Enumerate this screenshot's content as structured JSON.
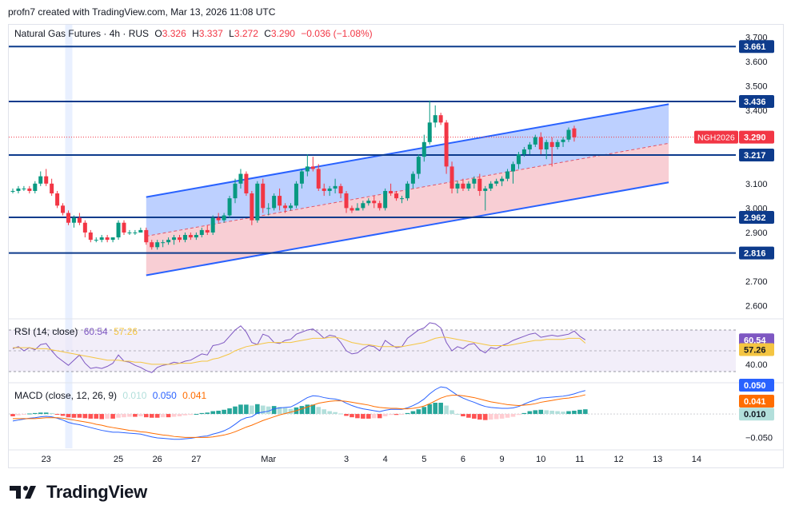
{
  "header": {
    "created_by": "profn7 created with TradingView.com, Mar 13, 2026 11:08 UTC"
  },
  "legend": {
    "symbol": "Natural Gas Futures · 4h · RUS",
    "o_label": "O",
    "o_value": "3.326",
    "h_label": "H",
    "h_value": "3.337",
    "l_label": "L",
    "l_value": "3.272",
    "c_label": "C",
    "c_value": "3.290",
    "change": "−0.036 (−1.08%)"
  },
  "rsi_legend": {
    "label": "RSI (14, close)",
    "value": "60.54",
    "ma_value": "57.26"
  },
  "macd_legend": {
    "label": "MACD (close, 12, 26, 9)",
    "hist": "0.010",
    "macd": "0.050",
    "signal": "0.041"
  },
  "colors": {
    "up": "#089981",
    "down": "#f23645",
    "level": "#0d3b8c",
    "channel": "#2962ff",
    "channel_fill_top": "#b2c8ff",
    "channel_fill_bottom": "#f7c9cf",
    "rsi": "#7e57c2",
    "rsi_ma": "#f4c542",
    "macd": "#2962ff",
    "signal": "#ff6d00",
    "hist_up_strong": "#26a69a",
    "hist_up_weak": "#b2dfdb",
    "hist_down_strong": "#ff5252",
    "hist_down_weak": "#ffcdd2"
  },
  "brand": {
    "name": "TradingView"
  },
  "chart_data": {
    "type": "candlestick",
    "title": "Natural Gas Futures · 4h · RUS",
    "ylim": [
      2.55,
      3.75
    ],
    "y_ticks": [
      "3.700",
      "3.600",
      "3.500",
      "3.400",
      "3.100",
      "3.000",
      "2.900",
      "2.700",
      "2.600"
    ],
    "x_labels": [
      {
        "i": 6,
        "label": "23"
      },
      {
        "i": 19,
        "label": "25"
      },
      {
        "i": 26,
        "label": "26"
      },
      {
        "i": 33,
        "label": "27"
      },
      {
        "i": 46,
        "label": "Mar"
      },
      {
        "i": 60,
        "label": "3"
      },
      {
        "i": 67,
        "label": "4"
      },
      {
        "i": 74,
        "label": "5"
      },
      {
        "i": 81,
        "label": "6"
      },
      {
        "i": 88,
        "label": "9"
      },
      {
        "i": 95,
        "label": "10"
      },
      {
        "i": 102,
        "label": "11"
      },
      {
        "i": 109,
        "label": "12"
      },
      {
        "i": 116,
        "label": "13"
      },
      {
        "i": 123,
        "label": "14"
      }
    ],
    "levels": [
      {
        "value": 3.661,
        "label": "3.661"
      },
      {
        "value": 3.436,
        "label": "3.436"
      },
      {
        "value": 3.217,
        "label": "3.217"
      },
      {
        "value": 2.962,
        "label": "2.962"
      },
      {
        "value": 2.816,
        "label": "2.816"
      }
    ],
    "current_price": {
      "value": 3.29,
      "label": "3.290",
      "symbol": "NGH2026"
    },
    "channel": {
      "start_i": 24,
      "end_i": 118,
      "upper": [
        3.045,
        3.425
      ],
      "middle": [
        2.885,
        3.265
      ],
      "lower": [
        2.725,
        3.105
      ]
    },
    "highlight_i": 10,
    "candles": [
      [
        3.07,
        3.08,
        3.06,
        3.07
      ],
      [
        3.07,
        3.09,
        3.06,
        3.08
      ],
      [
        3.08,
        3.09,
        3.07,
        3.08
      ],
      [
        3.08,
        3.09,
        3.06,
        3.07
      ],
      [
        3.07,
        3.11,
        3.06,
        3.1
      ],
      [
        3.1,
        3.15,
        3.09,
        3.13
      ],
      [
        3.13,
        3.16,
        3.09,
        3.1
      ],
      [
        3.1,
        3.12,
        3.05,
        3.06
      ],
      [
        3.06,
        3.07,
        3.0,
        3.01
      ],
      [
        3.01,
        3.02,
        2.97,
        2.98
      ],
      [
        2.98,
        2.99,
        2.93,
        2.94
      ],
      [
        2.94,
        2.97,
        2.92,
        2.96
      ],
      [
        2.96,
        2.98,
        2.93,
        2.94
      ],
      [
        2.94,
        2.95,
        2.88,
        2.9
      ],
      [
        2.9,
        2.91,
        2.86,
        2.87
      ],
      [
        2.87,
        2.88,
        2.86,
        2.87
      ],
      [
        2.87,
        2.89,
        2.86,
        2.88
      ],
      [
        2.88,
        2.89,
        2.86,
        2.87
      ],
      [
        2.87,
        2.88,
        2.86,
        2.88
      ],
      [
        2.88,
        2.95,
        2.87,
        2.94
      ],
      [
        2.94,
        2.95,
        2.89,
        2.9
      ],
      [
        2.9,
        2.91,
        2.89,
        2.9
      ],
      [
        2.9,
        2.91,
        2.89,
        2.9
      ],
      [
        2.9,
        2.92,
        2.9,
        2.91
      ],
      [
        2.91,
        2.92,
        2.85,
        2.86
      ],
      [
        2.86,
        2.87,
        2.83,
        2.84
      ],
      [
        2.84,
        2.87,
        2.83,
        2.86
      ],
      [
        2.86,
        2.87,
        2.84,
        2.86
      ],
      [
        2.86,
        2.88,
        2.85,
        2.87
      ],
      [
        2.87,
        2.89,
        2.85,
        2.88
      ],
      [
        2.88,
        2.89,
        2.86,
        2.87
      ],
      [
        2.87,
        2.9,
        2.86,
        2.89
      ],
      [
        2.89,
        2.9,
        2.87,
        2.88
      ],
      [
        2.88,
        2.9,
        2.87,
        2.89
      ],
      [
        2.89,
        2.92,
        2.88,
        2.91
      ],
      [
        2.91,
        2.93,
        2.89,
        2.9
      ],
      [
        2.9,
        2.97,
        2.89,
        2.96
      ],
      [
        2.96,
        2.98,
        2.94,
        2.95
      ],
      [
        2.95,
        2.98,
        2.94,
        2.97
      ],
      [
        2.97,
        3.05,
        2.96,
        3.04
      ],
      [
        3.04,
        3.12,
        3.02,
        3.1
      ],
      [
        3.1,
        3.16,
        3.08,
        3.14
      ],
      [
        3.14,
        3.15,
        3.05,
        3.06
      ],
      [
        3.06,
        3.07,
        2.93,
        2.95
      ],
      [
        2.95,
        3.11,
        2.94,
        3.1
      ],
      [
        3.1,
        3.12,
        2.98,
        3.0
      ],
      [
        3.0,
        3.02,
        2.97,
        3.0
      ],
      [
        3.0,
        3.06,
        2.99,
        3.05
      ],
      [
        3.05,
        3.08,
        2.99,
        3.01
      ],
      [
        3.01,
        3.02,
        2.98,
        3.0
      ],
      [
        3.0,
        3.02,
        2.99,
        3.01
      ],
      [
        3.01,
        3.11,
        3.0,
        3.1
      ],
      [
        3.1,
        3.16,
        3.08,
        3.15
      ],
      [
        3.15,
        3.22,
        3.13,
        3.17
      ],
      [
        3.17,
        3.21,
        3.15,
        3.16
      ],
      [
        3.16,
        3.18,
        3.07,
        3.08
      ],
      [
        3.08,
        3.1,
        3.05,
        3.07
      ],
      [
        3.07,
        3.09,
        3.05,
        3.08
      ],
      [
        3.08,
        3.12,
        3.06,
        3.09
      ],
      [
        3.09,
        3.1,
        3.04,
        3.06
      ],
      [
        3.06,
        3.07,
        2.98,
        3.0
      ],
      [
        3.0,
        3.01,
        2.98,
        2.99
      ],
      [
        2.99,
        3.02,
        2.99,
        3.0
      ],
      [
        3.0,
        3.03,
        2.99,
        3.02
      ],
      [
        3.02,
        3.04,
        3.01,
        3.03
      ],
      [
        3.03,
        3.05,
        3.0,
        3.02
      ],
      [
        3.02,
        3.03,
        2.99,
        3.0
      ],
      [
        3.0,
        3.08,
        2.99,
        3.07
      ],
      [
        3.07,
        3.1,
        3.05,
        3.06
      ],
      [
        3.06,
        3.07,
        3.03,
        3.04
      ],
      [
        3.04,
        3.05,
        3.02,
        3.04
      ],
      [
        3.04,
        3.11,
        3.03,
        3.1
      ],
      [
        3.1,
        3.15,
        3.08,
        3.14
      ],
      [
        3.14,
        3.22,
        3.12,
        3.21
      ],
      [
        3.21,
        3.3,
        3.19,
        3.27
      ],
      [
        3.27,
        3.44,
        3.26,
        3.35
      ],
      [
        3.35,
        3.42,
        3.33,
        3.38
      ],
      [
        3.38,
        3.39,
        3.34,
        3.35
      ],
      [
        3.35,
        3.36,
        3.14,
        3.17
      ],
      [
        3.17,
        3.19,
        3.06,
        3.08
      ],
      [
        3.08,
        3.11,
        3.06,
        3.1
      ],
      [
        3.1,
        3.12,
        3.07,
        3.08
      ],
      [
        3.08,
        3.11,
        3.07,
        3.1
      ],
      [
        3.1,
        3.13,
        3.08,
        3.12
      ],
      [
        3.12,
        3.14,
        3.05,
        3.07
      ],
      [
        3.07,
        3.09,
        2.99,
        3.08
      ],
      [
        3.08,
        3.11,
        3.07,
        3.1
      ],
      [
        3.1,
        3.12,
        3.09,
        3.11
      ],
      [
        3.11,
        3.13,
        3.09,
        3.12
      ],
      [
        3.12,
        3.16,
        3.11,
        3.15
      ],
      [
        3.15,
        3.19,
        3.1,
        3.18
      ],
      [
        3.18,
        3.23,
        3.16,
        3.22
      ],
      [
        3.22,
        3.25,
        3.21,
        3.24
      ],
      [
        3.24,
        3.27,
        3.22,
        3.26
      ],
      [
        3.26,
        3.3,
        3.25,
        3.29
      ],
      [
        3.29,
        3.31,
        3.22,
        3.24
      ],
      [
        3.24,
        3.28,
        3.2,
        3.27
      ],
      [
        3.27,
        3.29,
        3.17,
        3.25
      ],
      [
        3.25,
        3.28,
        3.24,
        3.27
      ],
      [
        3.27,
        3.29,
        3.25,
        3.28
      ],
      [
        3.28,
        3.33,
        3.27,
        3.32
      ],
      [
        3.326,
        3.337,
        3.272,
        3.29
      ]
    ],
    "rsi": {
      "ylim": [
        20,
        80
      ],
      "ticks": [
        "60.54",
        "57.26",
        "40.00"
      ],
      "values": [
        52,
        54,
        50,
        53,
        51,
        56,
        57,
        50,
        44,
        40,
        36,
        41,
        46,
        38,
        33,
        34,
        33,
        35,
        38,
        46,
        40,
        39,
        36,
        34,
        31,
        29,
        34,
        36,
        37,
        39,
        38,
        40,
        41,
        44,
        47,
        46,
        55,
        56,
        58,
        64,
        70,
        74,
        68,
        58,
        56,
        66,
        64,
        58,
        57,
        60,
        61,
        66,
        68,
        70,
        71,
        67,
        62,
        65,
        64,
        58,
        50,
        47,
        48,
        52,
        55,
        54,
        50,
        60,
        56,
        53,
        54,
        62,
        66,
        70,
        72,
        77,
        76,
        72,
        58,
        50,
        54,
        52,
        56,
        57,
        51,
        48,
        53,
        52,
        55,
        57,
        60,
        62,
        64,
        66,
        67,
        63,
        64,
        65,
        64,
        65,
        66,
        69,
        64,
        60.5
      ],
      "ma": [
        53,
        53,
        53,
        53,
        52,
        52,
        52,
        51,
        50,
        49,
        48,
        47,
        46,
        45,
        44,
        43,
        42,
        41,
        41,
        41,
        40,
        40,
        39,
        39,
        38,
        37,
        37,
        37,
        37,
        37,
        38,
        38,
        38,
        39,
        40,
        40,
        42,
        43,
        45,
        47,
        50,
        52,
        54,
        55,
        56,
        57,
        58,
        58,
        58,
        58,
        58,
        59,
        60,
        61,
        62,
        62,
        62,
        63,
        63,
        62,
        60,
        58,
        57,
        56,
        56,
        55,
        54,
        54,
        54,
        54,
        54,
        55,
        56,
        57,
        58,
        60,
        62,
        63,
        63,
        62,
        61,
        60,
        59,
        58,
        57,
        56,
        55,
        55,
        55,
        55,
        56,
        57,
        58,
        59,
        60,
        60,
        61,
        61,
        61,
        61,
        62,
        62,
        62,
        57.3
      ]
    },
    "macd": {
      "ylim": [
        -0.075,
        0.065
      ],
      "ticks": [
        "0.050",
        "0.041",
        "0.010",
        "−0.050"
      ],
      "macd": [
        -0.015,
        -0.013,
        -0.011,
        -0.009,
        -0.008,
        -0.006,
        -0.005,
        -0.006,
        -0.009,
        -0.013,
        -0.018,
        -0.021,
        -0.023,
        -0.026,
        -0.029,
        -0.032,
        -0.035,
        -0.037,
        -0.039,
        -0.039,
        -0.04,
        -0.041,
        -0.042,
        -0.043,
        -0.046,
        -0.049,
        -0.051,
        -0.052,
        -0.053,
        -0.054,
        -0.054,
        -0.053,
        -0.052,
        -0.05,
        -0.048,
        -0.047,
        -0.043,
        -0.04,
        -0.036,
        -0.03,
        -0.022,
        -0.013,
        -0.008,
        -0.006,
        0.002,
        0.004,
        0.006,
        0.011,
        0.013,
        0.014,
        0.015,
        0.021,
        0.028,
        0.035,
        0.039,
        0.038,
        0.035,
        0.033,
        0.032,
        0.029,
        0.023,
        0.018,
        0.014,
        0.011,
        0.009,
        0.007,
        0.005,
        0.008,
        0.01,
        0.01,
        0.01,
        0.013,
        0.018,
        0.024,
        0.032,
        0.043,
        0.052,
        0.058,
        0.056,
        0.048,
        0.04,
        0.034,
        0.029,
        0.025,
        0.02,
        0.016,
        0.014,
        0.013,
        0.012,
        0.012,
        0.013,
        0.016,
        0.021,
        0.026,
        0.03,
        0.034,
        0.035,
        0.036,
        0.037,
        0.038,
        0.04,
        0.043,
        0.047,
        0.05
      ],
      "signal": [
        -0.01,
        -0.01,
        -0.01,
        -0.01,
        -0.01,
        -0.009,
        -0.008,
        -0.008,
        -0.008,
        -0.009,
        -0.011,
        -0.013,
        -0.015,
        -0.017,
        -0.019,
        -0.022,
        -0.024,
        -0.027,
        -0.029,
        -0.031,
        -0.033,
        -0.035,
        -0.036,
        -0.038,
        -0.039,
        -0.041,
        -0.043,
        -0.045,
        -0.046,
        -0.048,
        -0.049,
        -0.05,
        -0.05,
        -0.05,
        -0.05,
        -0.05,
        -0.049,
        -0.047,
        -0.045,
        -0.042,
        -0.038,
        -0.033,
        -0.028,
        -0.024,
        -0.019,
        -0.014,
        -0.01,
        -0.006,
        -0.002,
        0.001,
        0.004,
        0.007,
        0.011,
        0.015,
        0.019,
        0.023,
        0.025,
        0.027,
        0.028,
        0.028,
        0.027,
        0.025,
        0.023,
        0.021,
        0.019,
        0.016,
        0.014,
        0.013,
        0.012,
        0.012,
        0.011,
        0.011,
        0.012,
        0.014,
        0.017,
        0.022,
        0.028,
        0.034,
        0.038,
        0.04,
        0.04,
        0.039,
        0.037,
        0.035,
        0.032,
        0.029,
        0.026,
        0.024,
        0.022,
        0.02,
        0.019,
        0.018,
        0.019,
        0.02,
        0.022,
        0.025,
        0.027,
        0.029,
        0.031,
        0.033,
        0.034,
        0.036,
        0.038,
        0.041
      ],
      "hist": [
        -0.005,
        -0.003,
        -0.001,
        0.001,
        0.002,
        0.003,
        0.003,
        0.002,
        -0.001,
        -0.004,
        -0.007,
        -0.008,
        -0.008,
        -0.009,
        -0.01,
        -0.01,
        -0.011,
        -0.01,
        -0.01,
        -0.008,
        -0.007,
        -0.006,
        -0.006,
        -0.005,
        -0.007,
        -0.008,
        -0.008,
        -0.007,
        -0.007,
        -0.006,
        -0.005,
        -0.003,
        -0.002,
        0.0,
        0.002,
        0.003,
        0.006,
        0.007,
        0.009,
        0.012,
        0.016,
        0.02,
        0.02,
        0.018,
        0.021,
        0.018,
        0.016,
        0.017,
        0.015,
        0.013,
        0.011,
        0.014,
        0.017,
        0.02,
        0.02,
        0.015,
        0.01,
        0.006,
        0.004,
        0.001,
        -0.004,
        -0.007,
        -0.009,
        -0.01,
        -0.01,
        -0.009,
        -0.009,
        -0.005,
        -0.002,
        -0.002,
        -0.001,
        0.002,
        0.006,
        0.01,
        0.015,
        0.021,
        0.024,
        0.024,
        0.018,
        0.008,
        0.0,
        -0.005,
        -0.008,
        -0.01,
        -0.012,
        -0.013,
        -0.012,
        -0.011,
        -0.01,
        -0.008,
        -0.006,
        -0.002,
        0.002,
        0.006,
        0.008,
        0.009,
        0.008,
        0.007,
        0.006,
        0.005,
        0.006,
        0.007,
        0.009,
        0.01
      ]
    }
  }
}
